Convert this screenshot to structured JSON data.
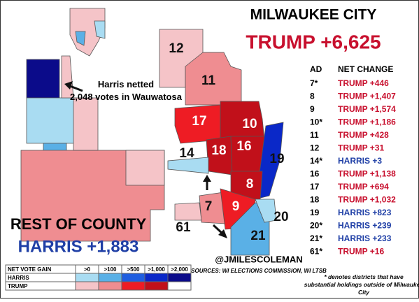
{
  "header": {
    "title": "MILWAUKEE CITY",
    "subtitle": "TRUMP +6,625",
    "subtitle_color": "#c8102e"
  },
  "table": {
    "headers": [
      "AD",
      "NET CHANGE"
    ],
    "rows": [
      {
        "ad": "7*",
        "change": "TRUMP +446",
        "color": "#c8102e"
      },
      {
        "ad": "8",
        "change": "TRUMP +1,407",
        "color": "#c8102e"
      },
      {
        "ad": "9",
        "change": "TRUMP +1,574",
        "color": "#c8102e"
      },
      {
        "ad": "10*",
        "change": "TRUMP +1,186",
        "color": "#c8102e"
      },
      {
        "ad": "11",
        "change": "TRUMP +428",
        "color": "#c8102e"
      },
      {
        "ad": "12",
        "change": "TRUMP +31",
        "color": "#c8102e"
      },
      {
        "ad": "14*",
        "change": "HARRIS +3",
        "color": "#1f3fa6"
      },
      {
        "ad": "16",
        "change": "TRUMP +1,138",
        "color": "#c8102e"
      },
      {
        "ad": "17",
        "change": "TRUMP +694",
        "color": "#c8102e"
      },
      {
        "ad": "18",
        "change": "TRUMP +1,032",
        "color": "#c8102e"
      },
      {
        "ad": "19",
        "change": "HARRIS +823",
        "color": "#1f3fa6"
      },
      {
        "ad": "20*",
        "change": "HARRIS +239",
        "color": "#1f3fa6"
      },
      {
        "ad": "21*",
        "change": "HARRIS +233",
        "color": "#1f3fa6"
      },
      {
        "ad": "61*",
        "change": "TRUMP +16",
        "color": "#c8102e"
      }
    ],
    "footnote": "* denotes districts that have substantial holdings outside of Milwaukee City"
  },
  "annotation": "Harris netted 2,048 votes in Wauwatosa",
  "county": {
    "title": "REST OF COUNTY",
    "result": "HARRIS +1,883",
    "result_color": "#1f3fa6"
  },
  "map_labels": [
    "12",
    "11",
    "17",
    "10",
    "18",
    "16",
    "19",
    "14",
    "8",
    "7",
    "9",
    "20",
    "61",
    "21"
  ],
  "legend": {
    "header": "NET VOTE GAIN",
    "bins": [
      ">0",
      ">100",
      ">500",
      ">1,000",
      ">2,000"
    ],
    "rows": [
      {
        "name": "HARRIS",
        "colors": [
          "#a9dcf2",
          "#5ab0e6",
          "#1f5ee0",
          "#0a28c8",
          "#0b0b8a"
        ]
      },
      {
        "name": "TRUMP",
        "colors": [
          "#f5c4c8",
          "#ef8d91",
          "#ee1c24",
          "#c1101a",
          "#ffffff"
        ]
      }
    ]
  },
  "credit": "@JMILESCOLEMAN",
  "sources": "SOURCES: WI ELECTIONS COMMISSION, WI LTSB"
}
